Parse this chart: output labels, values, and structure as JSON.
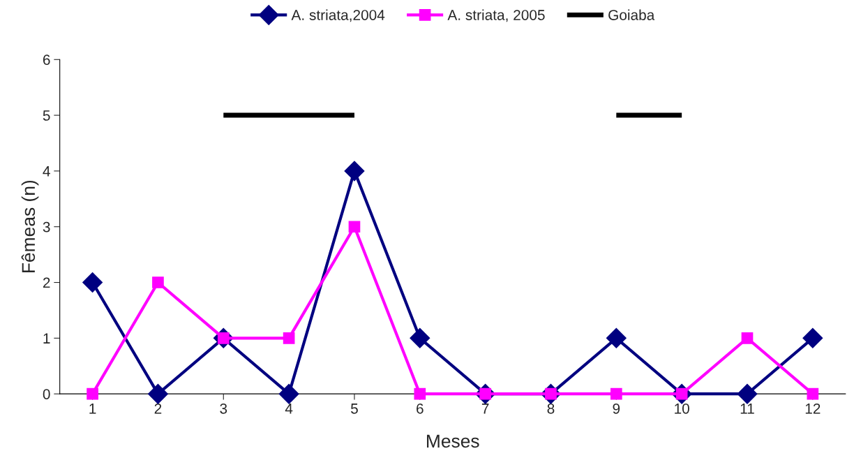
{
  "chart_data": {
    "type": "line",
    "xlabel": "Meses",
    "ylabel": "Fêmeas (n)",
    "categories": [
      "1",
      "2",
      "3",
      "4",
      "5",
      "6",
      "7",
      "8",
      "9",
      "10",
      "11",
      "12"
    ],
    "series": [
      {
        "name": "A. striata,2004",
        "color": "#000080",
        "marker": "diamond",
        "values": [
          2,
          0,
          1,
          0,
          4,
          1,
          0,
          0,
          1,
          0,
          0,
          1
        ]
      },
      {
        "name": "A. striata, 2005",
        "color": "#ff00ff",
        "marker": "square",
        "values": [
          0,
          2,
          1,
          1,
          3,
          0,
          0,
          0,
          0,
          0,
          1,
          0
        ]
      },
      {
        "name": "Goiaba",
        "color": "#000000",
        "marker": "none",
        "values": [
          null,
          null,
          5,
          5,
          5,
          null,
          null,
          null,
          5,
          5,
          null,
          null
        ]
      }
    ],
    "ylim": [
      0,
      6
    ],
    "yticks": [
      0,
      1,
      2,
      3,
      4,
      5,
      6
    ],
    "grid": false,
    "legend": "top"
  }
}
